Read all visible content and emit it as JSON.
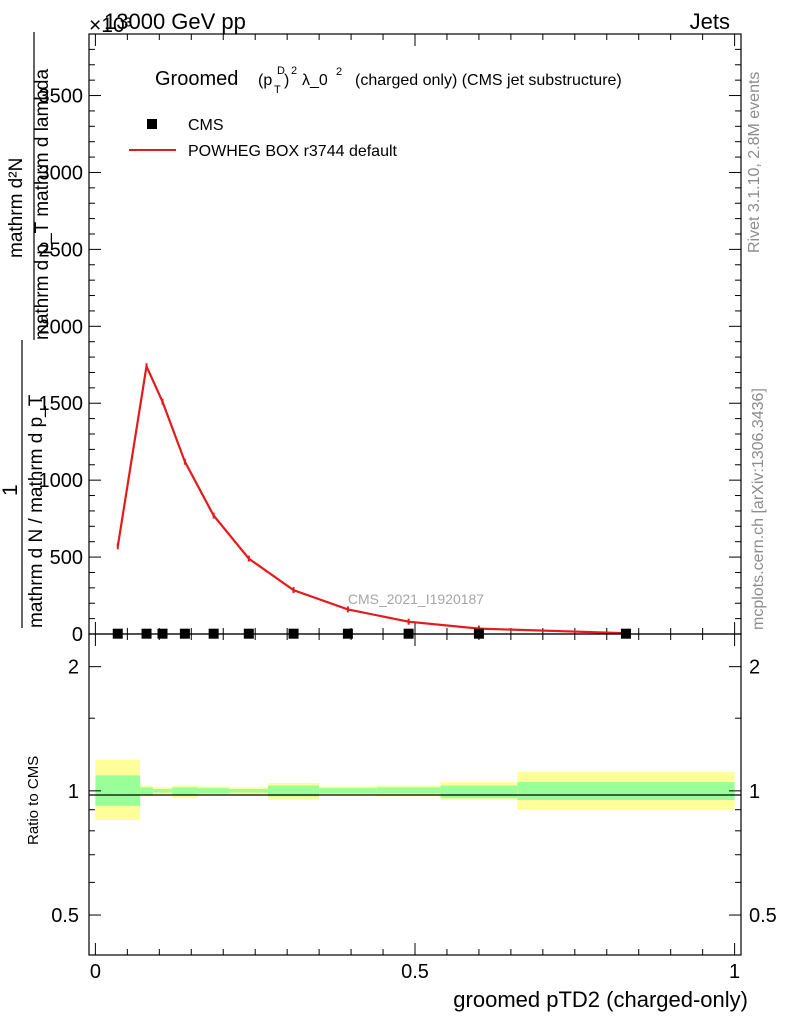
{
  "header": {
    "left": "13000 GeV pp",
    "right": "Jets",
    "exponent": "×10³"
  },
  "side_labels": {
    "top": "Rivet 3.1.10,  2.8M events",
    "bottom": "mcplots.cern.ch [arXiv:1306.3436]"
  },
  "watermark": "CMS_2021_I1920187",
  "chart_data": [
    {
      "type": "line",
      "panel": "main",
      "title_parts": {
        "lead": "Groomed",
        "base": "(p",
        "sub": "T",
        "sup_d": "D",
        "close": ")",
        "sup2": "2",
        "lambda": "λ_0",
        "sup3": "2",
        "tail": "(charged only) (CMS jet substructure)"
      },
      "ylabel": {
        "numerator": "mathrm dN",
        "one": "1",
        "frac1_num": "mathrm d²N",
        "frac1_den": "mathrm d p_T mathrm d lambda",
        "frac2": "mathrm d N / mathrm d p_T"
      },
      "ylabel_lines": [
        "mathrm d²N",
        "mathrm d p_T mathrm d lambda",
        "1",
        "mathrm d N / mathrm d p_T"
      ],
      "y_ticks": [
        "0",
        "500",
        "1000",
        "1500",
        "2000",
        "2500",
        "3000",
        "3500"
      ],
      "ylim": [
        0,
        3900
      ],
      "xlim": [
        -0.01,
        1.01
      ],
      "legend": [
        {
          "label": "CMS",
          "marker": "square",
          "color": "#000000"
        },
        {
          "label": "POWHEG BOX r3744 default",
          "marker": "line",
          "color": "#e41a1c"
        }
      ],
      "series": [
        {
          "name": "CMS",
          "x": [
            0.035,
            0.08,
            0.105,
            0.14,
            0.185,
            0.24,
            0.31,
            0.395,
            0.49,
            0.6,
            0.83
          ],
          "y": [
            2,
            2,
            2,
            2,
            2,
            2,
            2,
            2,
            2,
            2,
            2
          ]
        },
        {
          "name": "POWHEG BOX r3744 default",
          "x": [
            0.035,
            0.08,
            0.105,
            0.14,
            0.185,
            0.24,
            0.31,
            0.395,
            0.49,
            0.6,
            0.83
          ],
          "y": [
            570,
            1740,
            1510,
            1120,
            770,
            490,
            285,
            160,
            80,
            35,
            5
          ]
        }
      ]
    },
    {
      "type": "line",
      "panel": "ratio",
      "ylabel": "Ratio to CMS",
      "y_ticks": [
        "0.5",
        "1",
        "2"
      ],
      "y_tick_values": [
        0.5,
        1,
        2
      ],
      "ylim": [
        0.4,
        2.4
      ],
      "log_y": true,
      "x_ticks": [
        "0",
        "0.5",
        "1"
      ],
      "x_tick_values": [
        0,
        0.5,
        1
      ],
      "xlim": [
        -0.01,
        1.01
      ],
      "xlabel": "groomed pTD2 (charged-only)",
      "bins": [
        {
          "lo": 0.0,
          "hi": 0.07,
          "g_lo": 0.92,
          "g_hi": 1.09,
          "y_lo": 0.85,
          "y_hi": 1.19
        },
        {
          "lo": 0.07,
          "hi": 0.09,
          "g_lo": 0.98,
          "g_hi": 1.02,
          "y_lo": 0.97,
          "y_hi": 1.03
        },
        {
          "lo": 0.09,
          "hi": 0.12,
          "g_lo": 0.99,
          "g_hi": 1.01,
          "y_lo": 0.98,
          "y_hi": 1.02
        },
        {
          "lo": 0.12,
          "hi": 0.16,
          "g_lo": 0.98,
          "g_hi": 1.02,
          "y_lo": 0.96,
          "y_hi": 1.03
        },
        {
          "lo": 0.16,
          "hi": 0.21,
          "g_lo": 0.985,
          "g_hi": 1.015,
          "y_lo": 0.975,
          "y_hi": 1.025
        },
        {
          "lo": 0.21,
          "hi": 0.27,
          "g_lo": 0.99,
          "g_hi": 1.01,
          "y_lo": 0.98,
          "y_hi": 1.02
        },
        {
          "lo": 0.27,
          "hi": 0.35,
          "g_lo": 0.97,
          "g_hi": 1.03,
          "y_lo": 0.95,
          "y_hi": 1.045
        },
        {
          "lo": 0.35,
          "hi": 0.44,
          "g_lo": 0.985,
          "g_hi": 1.015,
          "y_lo": 0.975,
          "y_hi": 1.025
        },
        {
          "lo": 0.44,
          "hi": 0.54,
          "g_lo": 0.985,
          "g_hi": 1.02,
          "y_lo": 0.97,
          "y_hi": 1.03
        },
        {
          "lo": 0.54,
          "hi": 0.66,
          "g_lo": 0.96,
          "g_hi": 1.03,
          "y_lo": 0.95,
          "y_hi": 1.05
        },
        {
          "lo": 0.66,
          "hi": 1.0,
          "g_lo": 0.95,
          "g_hi": 1.05,
          "y_lo": 0.9,
          "y_hi": 1.11
        }
      ],
      "band_colors": {
        "outer": "#ffff99",
        "inner": "#99ff99"
      }
    }
  ]
}
